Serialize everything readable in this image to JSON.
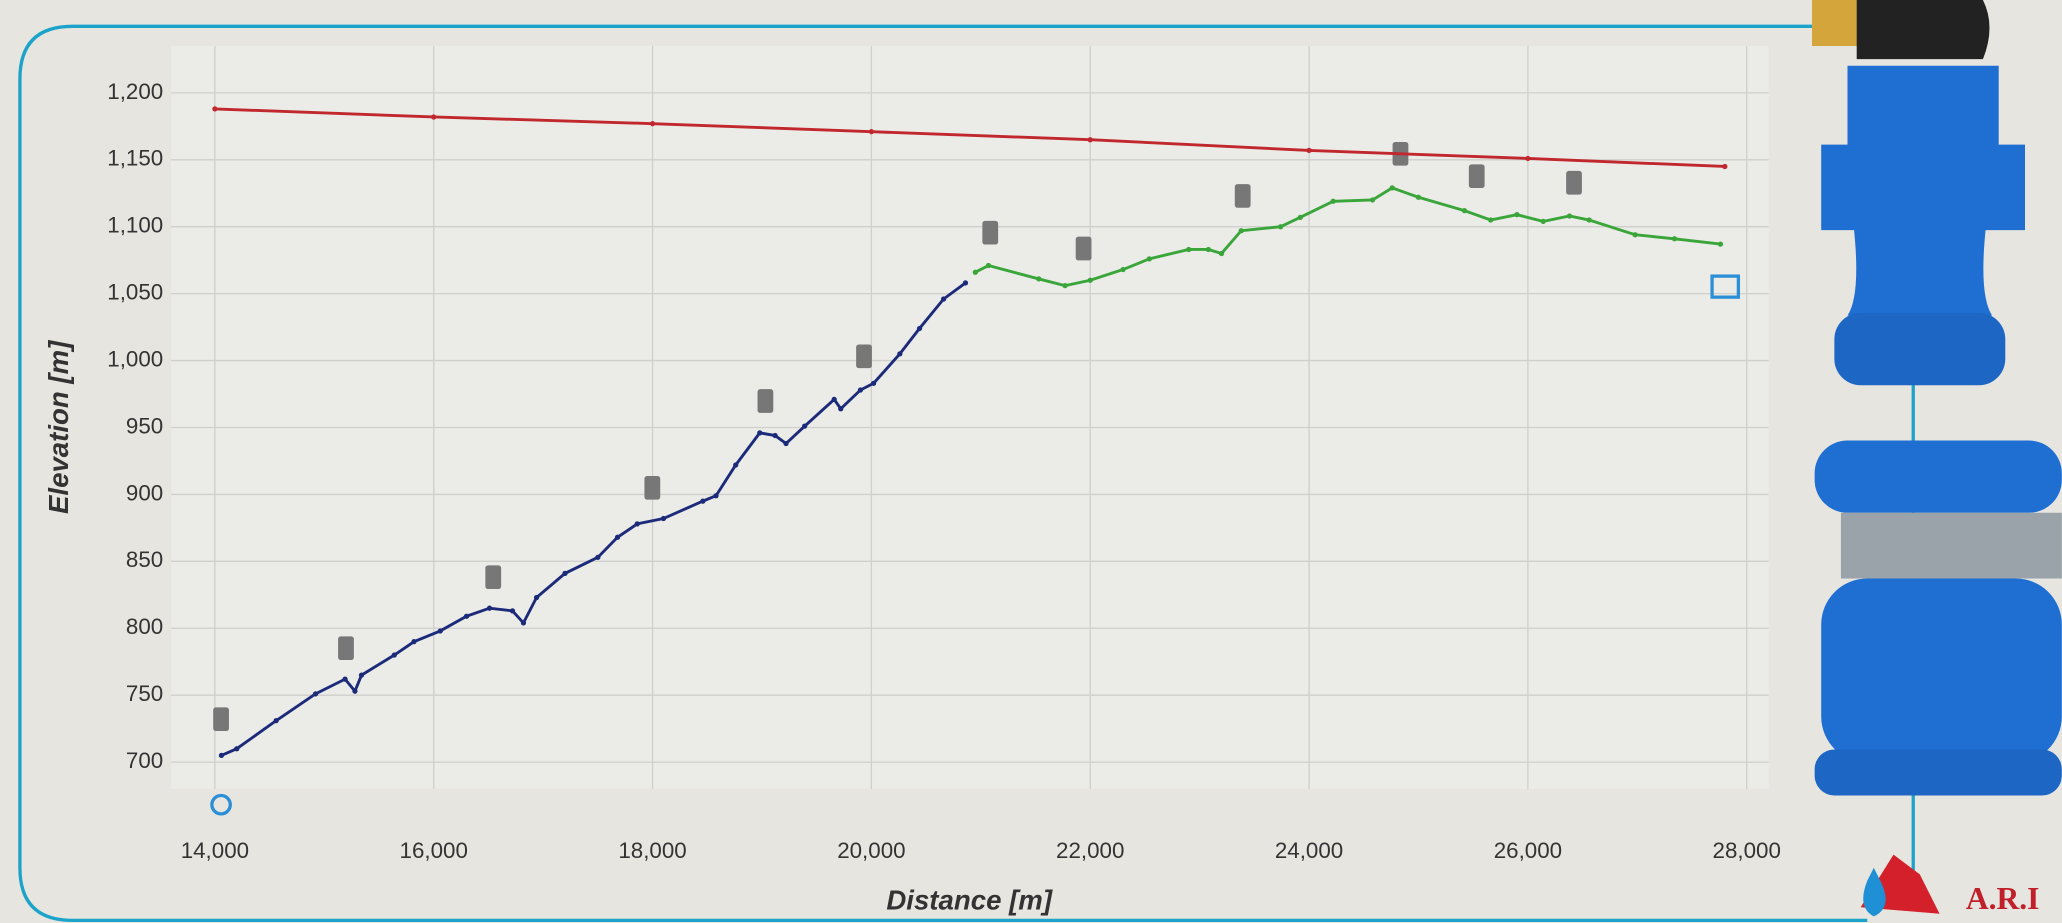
{
  "chart_data": {
    "type": "line",
    "xlabel": "Distance [m]",
    "ylabel": "Elevation [m]",
    "xlim": [
      13600,
      28200
    ],
    "ylim": [
      680,
      1235
    ],
    "xticks": [
      {
        "value": 14000,
        "label": "14,000"
      },
      {
        "value": 16000,
        "label": "16,000"
      },
      {
        "value": 18000,
        "label": "18,000"
      },
      {
        "value": 20000,
        "label": "20,000"
      },
      {
        "value": 22000,
        "label": "22,000"
      },
      {
        "value": 24000,
        "label": "24,000"
      },
      {
        "value": 26000,
        "label": "26,000"
      },
      {
        "value": 28000,
        "label": "28,000"
      }
    ],
    "yticks": [
      700,
      750,
      800,
      850,
      900,
      950,
      {
        "value": 1000,
        "label": "1,000"
      },
      {
        "value": 1050,
        "label": "1,050"
      },
      {
        "value": 1100,
        "label": "1,100"
      },
      {
        "value": 1150,
        "label": "1,150"
      },
      {
        "value": 1200,
        "label": "1,200"
      }
    ],
    "grid": true,
    "series": [
      {
        "color": "#c0282d",
        "x": [
          14000,
          16000,
          18000,
          20000,
          22000,
          24000,
          26000,
          27800
        ],
        "values": [
          1188,
          1182,
          1177,
          1171,
          1165,
          1157,
          1151,
          1145
        ]
      },
      {
        "color": "#1c2a7a",
        "x": [
          14060,
          14200,
          14560,
          14920,
          15190,
          15280,
          15340,
          15640,
          15820,
          16060,
          16300,
          16510,
          16720,
          16820,
          16940,
          17200,
          17500,
          17680,
          17860,
          18100,
          18460,
          18580,
          18760,
          18980,
          19120,
          19220,
          19390,
          19660,
          19720,
          19900,
          20020,
          20260,
          20440,
          20660,
          20860
        ],
        "values": [
          705,
          710,
          731,
          751,
          762,
          753,
          765,
          780,
          790,
          798,
          809,
          815,
          813,
          804,
          823,
          841,
          853,
          868,
          878,
          882,
          895,
          899,
          922,
          946,
          944,
          938,
          951,
          971,
          964,
          978,
          983,
          1005,
          1024,
          1046,
          1058
        ]
      },
      {
        "color": "#3aa63a",
        "x": [
          20950,
          21070,
          21530,
          21770,
          22000,
          22300,
          22540,
          22900,
          23080,
          23200,
          23380,
          23740,
          23920,
          24220,
          24580,
          24760,
          25000,
          25420,
          25660,
          25900,
          26140,
          26380,
          26560,
          26980,
          27340,
          27760
        ],
        "values": [
          1066,
          1071,
          1061,
          1056,
          1060,
          1068,
          1076,
          1083,
          1083,
          1080,
          1097,
          1100,
          1107,
          1119,
          1120,
          1129,
          1122,
          1112,
          1105,
          1109,
          1104,
          1108,
          1105,
          1094,
          1091,
          1087
        ]
      }
    ]
  },
  "logo": "A.R.I"
}
